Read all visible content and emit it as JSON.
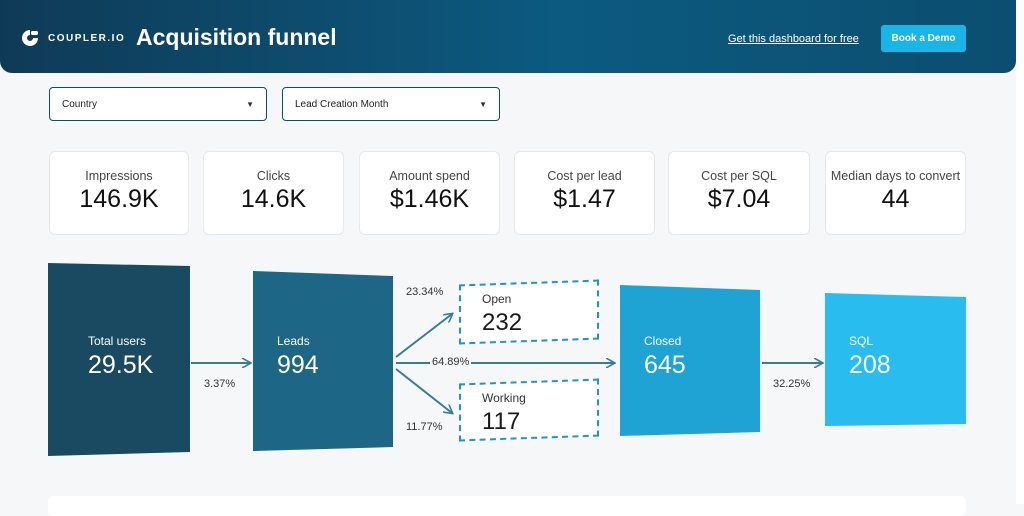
{
  "header": {
    "logo_text": "COUPLER.IO",
    "title": "Acquisition funnel",
    "link_text": "Get this dashboard for free",
    "button_label": "Book a Demo"
  },
  "filters": [
    {
      "label": "Country"
    },
    {
      "label": "Lead Creation Month"
    }
  ],
  "kpis": [
    {
      "label": "Impressions",
      "value": "146.9K"
    },
    {
      "label": "Clicks",
      "value": "14.6K"
    },
    {
      "label": "Amount spend",
      "value": "$1.46K"
    },
    {
      "label": "Cost per lead",
      "value": "$1.47"
    },
    {
      "label": "Cost per SQL",
      "value": "$7.04"
    },
    {
      "label": "Median days to convert",
      "value": "44"
    }
  ],
  "funnel": {
    "stages": {
      "total_users": {
        "label": "Total users",
        "value": "29.5K"
      },
      "leads": {
        "label": "Leads",
        "value": "994"
      },
      "open": {
        "label": "Open",
        "value": "232"
      },
      "working": {
        "label": "Working",
        "value": "117"
      },
      "closed": {
        "label": "Closed",
        "value": "645"
      },
      "sql": {
        "label": "SQL",
        "value": "208"
      }
    },
    "rates": {
      "users_to_leads": "3.37%",
      "leads_to_open": "23.34%",
      "leads_to_closed": "64.89%",
      "leads_to_working": "11.77%",
      "closed_to_sql": "32.25%"
    },
    "colors": {
      "total_users": "#1a4a62",
      "leads": "#1d6685",
      "closed": "#1fa3d4",
      "sql": "#29bdef",
      "arrow": "#3a7c96",
      "dashed": "#1f95c4"
    }
  }
}
